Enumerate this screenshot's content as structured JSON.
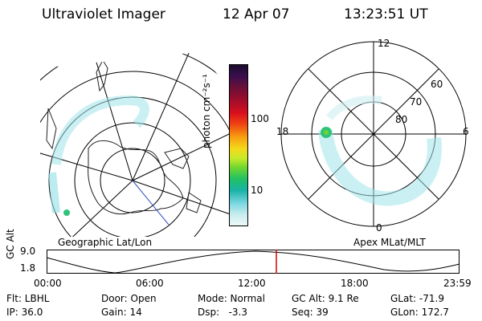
{
  "header": {
    "instrument": "Ultraviolet Imager",
    "date": "12 Apr 07",
    "time": "13:23:51 UT"
  },
  "geo_map": {
    "label": "Geographic Lat/Lon"
  },
  "colorbar": {
    "unit_label": "photon cm⁻²s⁻¹",
    "ticks": [
      "100",
      "10"
    ],
    "colors": [
      "#1b0b2e",
      "#3b0f4d",
      "#6a0f38",
      "#a00d2a",
      "#d8101e",
      "#f04412",
      "#f7a010",
      "#f4d81a",
      "#c8ea2a",
      "#6fd62f",
      "#22c064",
      "#19b3a6",
      "#78d6e0",
      "#c7ecee",
      "#eef8f9"
    ]
  },
  "polar_map": {
    "label": "Apex MLat/MLT",
    "mlt_labels": [
      "12",
      "18",
      "6",
      "0"
    ],
    "lat_labels": [
      "60",
      "70",
      "80"
    ]
  },
  "orbit_panel": {
    "ylabel": "GC Alt",
    "yticks": [
      "9.0",
      "1.8"
    ],
    "xticks": [
      "00:00",
      "06:00",
      "12:00",
      "18:00",
      "23:59"
    ]
  },
  "status": {
    "row1": [
      "Flt: LBHL",
      "Door: Open",
      "Mode: Normal",
      "GC Alt: 9.1 Re",
      "GLat: -71.9"
    ],
    "row2": [
      "IP: 36.0",
      "Gain: 14",
      "Dsp:   -3.3",
      "Seq: 39",
      "GLon: 172.7"
    ]
  }
}
